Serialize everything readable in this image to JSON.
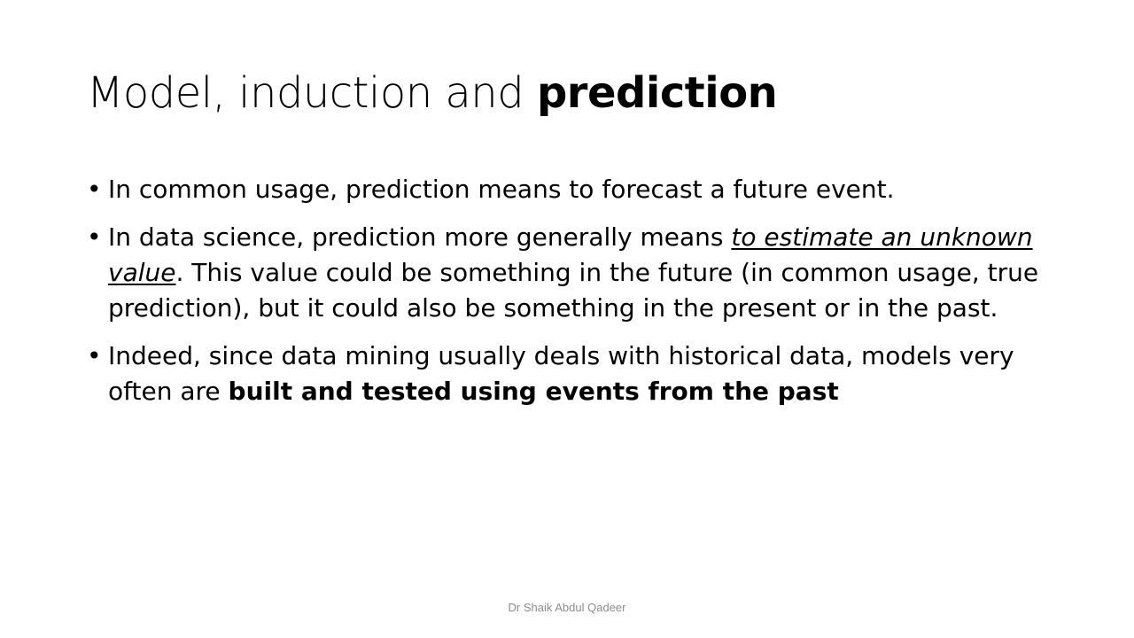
{
  "slide": {
    "title": {
      "normal": "Model, induction and ",
      "bold": "prediction"
    },
    "bullet_glyph": "•",
    "bullets": [
      {
        "text": "In common usage, prediction means to forecast a future event."
      },
      {
        "before": "In data science, prediction more generally means ",
        "emphasis": "to estimate an unknown value",
        "after": ". This value could be something in the future (in common usage, true prediction), but it could also be something in the present or in the past."
      },
      {
        "before": "Indeed, since data mining usually deals with historical data, models very often are ",
        "bold": "built and tested using events from the past"
      }
    ],
    "footer": "Dr Shaik Abdul Qadeer"
  }
}
